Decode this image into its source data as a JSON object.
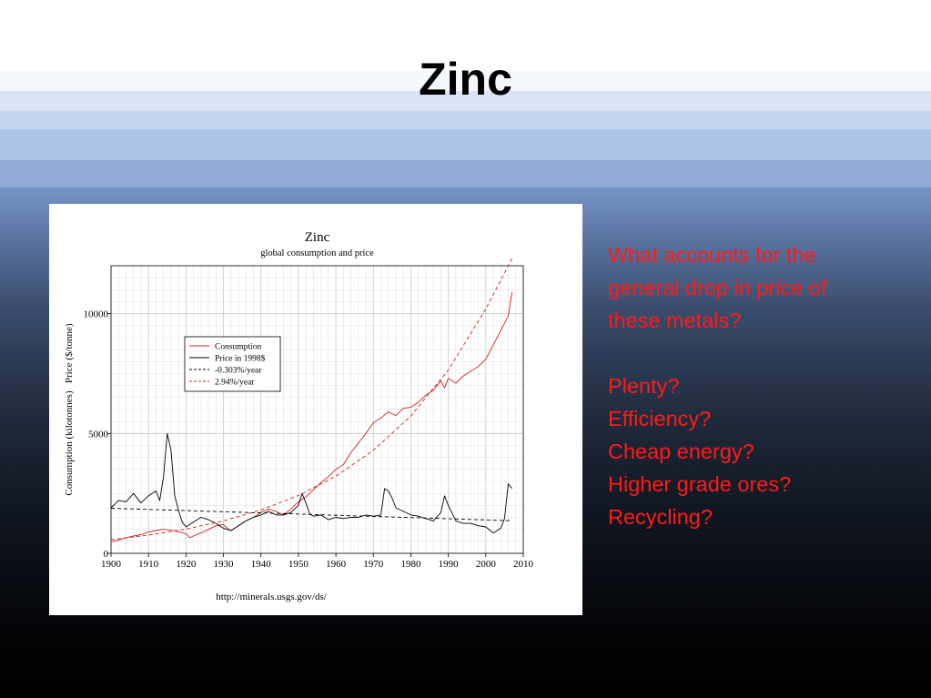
{
  "slide": {
    "title": "Zinc",
    "question": "What accounts for the general drop in price of these metals?",
    "answers": [
      "Plenty?",
      "Efficiency?",
      "Cheap energy?",
      "Higher grade ores?",
      "Recycling?"
    ]
  },
  "colors": {
    "consumption": "#d22020",
    "price": "#000000",
    "trend_price": "#000000",
    "trend_consumption": "#d22020",
    "side_text": "#ff1a1a"
  },
  "chart_data": {
    "type": "line",
    "title": "Zinc",
    "subtitle": "global consumption and price",
    "ylabel": "Consumption (kilotonnes)   Price ($/tonne)",
    "source": "http://minerals.usgs.gov/ds/",
    "xlim": [
      1900,
      2010
    ],
    "ylim": [
      0,
      12000
    ],
    "x_ticks": [
      1900,
      1910,
      1920,
      1930,
      1940,
      1950,
      1960,
      1970,
      1980,
      1990,
      2000,
      2010
    ],
    "y_ticks": [
      0,
      5000,
      10000
    ],
    "grid": true,
    "legend_position": "upper-left",
    "series": [
      {
        "name": "Consumption",
        "style": "solid",
        "color": "#d22020",
        "x": [
          1900,
          1902,
          1904,
          1906,
          1908,
          1910,
          1912,
          1914,
          1916,
          1918,
          1920,
          1921,
          1922,
          1924,
          1926,
          1928,
          1930,
          1931,
          1932,
          1934,
          1936,
          1938,
          1940,
          1942,
          1944,
          1946,
          1948,
          1950,
          1952,
          1954,
          1956,
          1958,
          1960,
          1962,
          1964,
          1966,
          1968,
          1970,
          1972,
          1974,
          1976,
          1978,
          1980,
          1982,
          1984,
          1986,
          1988,
          1989,
          1990,
          1992,
          1994,
          1996,
          1998,
          2000,
          2002,
          2004,
          2006,
          2007
        ],
        "values": [
          480,
          550,
          650,
          720,
          780,
          880,
          950,
          1000,
          960,
          900,
          820,
          650,
          720,
          850,
          1000,
          1150,
          1200,
          1050,
          950,
          1150,
          1350,
          1500,
          1700,
          1850,
          1750,
          1600,
          1850,
          2150,
          2350,
          2650,
          2950,
          3200,
          3500,
          3700,
          4200,
          4600,
          5000,
          5450,
          5650,
          5900,
          5750,
          6050,
          6100,
          6300,
          6600,
          6800,
          7200,
          6900,
          7300,
          7100,
          7400,
          7600,
          7800,
          8100,
          8700,
          9300,
          9900,
          10900
        ]
      },
      {
        "name": "Price in 1998$",
        "style": "solid",
        "color": "#000000",
        "x": [
          1900,
          1902,
          1904,
          1906,
          1908,
          1910,
          1912,
          1913,
          1914,
          1915,
          1916,
          1917,
          1918,
          1919,
          1920,
          1922,
          1924,
          1926,
          1928,
          1930,
          1932,
          1934,
          1936,
          1938,
          1940,
          1942,
          1944,
          1946,
          1948,
          1950,
          1951,
          1952,
          1953,
          1954,
          1956,
          1958,
          1960,
          1962,
          1964,
          1966,
          1968,
          1970,
          1972,
          1973,
          1974,
          1975,
          1976,
          1978,
          1980,
          1982,
          1984,
          1986,
          1988,
          1989,
          1990,
          1992,
          1994,
          1996,
          1998,
          2000,
          2002,
          2004,
          2005,
          2006,
          2007
        ],
        "values": [
          1900,
          2200,
          2150,
          2500,
          2100,
          2400,
          2600,
          2200,
          3200,
          5000,
          4300,
          2400,
          1800,
          1300,
          1100,
          1300,
          1500,
          1400,
          1250,
          1050,
          950,
          1150,
          1350,
          1500,
          1600,
          1750,
          1600,
          1600,
          1700,
          2000,
          2500,
          2100,
          1650,
          1550,
          1600,
          1400,
          1500,
          1450,
          1500,
          1500,
          1600,
          1550,
          1600,
          2700,
          2600,
          2300,
          1900,
          1750,
          1600,
          1550,
          1450,
          1350,
          1700,
          2400,
          2000,
          1350,
          1250,
          1250,
          1150,
          1100,
          850,
          1050,
          1450,
          2900,
          2700
        ]
      },
      {
        "name": "-0.303%/year",
        "style": "dashed",
        "color": "#000000",
        "x": [
          1900,
          2007
        ],
        "values": [
          1880,
          1360
        ]
      },
      {
        "name": "2.94%/year",
        "style": "dashed",
        "color": "#d22020",
        "x": [
          1900,
          1910,
          1920,
          1930,
          1940,
          1950,
          1960,
          1970,
          1980,
          1990,
          2000,
          2007
        ],
        "values": [
          570,
          760,
          1010,
          1350,
          1810,
          2410,
          3220,
          4300,
          5730,
          7650,
          10200,
          12300
        ]
      }
    ]
  }
}
